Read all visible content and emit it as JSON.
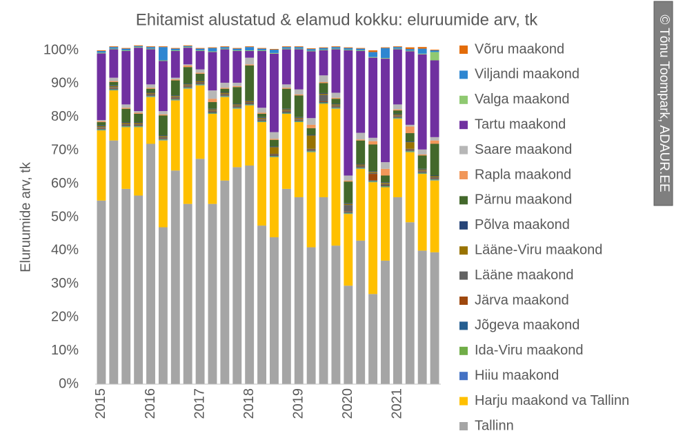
{
  "chart_data": {
    "type": "stacked_bar_percent",
    "title": "Ehitamist alustatud & elamud kokku: eluruumide arv, tk",
    "y_axis_label": "Eluruumide arv, tk",
    "watermark": "© Tõnu Toompark, ADAUR.EE",
    "categories": [
      "2015",
      null,
      null,
      null,
      "2016",
      null,
      null,
      null,
      "2017",
      null,
      null,
      null,
      "2018",
      null,
      null,
      null,
      "2019",
      null,
      null,
      null,
      "2020",
      null,
      null,
      null,
      "2021",
      null,
      null,
      null
    ],
    "ylim": [
      0,
      100
    ],
    "yticks": [
      {
        "value": 0,
        "label": "0%"
      },
      {
        "value": 10,
        "label": "10%"
      },
      {
        "value": 20,
        "label": "20%"
      },
      {
        "value": 30,
        "label": "30%"
      },
      {
        "value": 40,
        "label": "40%"
      },
      {
        "value": 50,
        "label": "50%"
      },
      {
        "value": 60,
        "label": "60%"
      },
      {
        "value": 70,
        "label": "70%"
      },
      {
        "value": 80,
        "label": "80%"
      },
      {
        "value": 90,
        "label": "90%"
      },
      {
        "value": 100,
        "label": "100%"
      }
    ],
    "grid": false,
    "legend": "right",
    "series": [
      {
        "name": "Tallinn",
        "color": "#a5a5a5",
        "values": [
          55,
          73,
          58.5,
          56.5,
          72,
          47,
          64,
          54,
          67.5,
          54,
          61,
          65,
          65.5,
          47.5,
          44,
          58.5,
          56,
          41,
          56,
          41.5,
          29.5,
          43,
          27,
          37,
          56,
          48.5,
          40,
          39.5
        ]
      },
      {
        "name": "Harju maakond va Tallinn",
        "color": "#ffc000",
        "values": [
          21,
          15,
          18.5,
          20.5,
          14,
          26,
          21,
          34.5,
          22,
          27,
          25,
          17.5,
          18,
          31,
          24,
          22.5,
          22.5,
          28.5,
          28,
          41,
          21.5,
          21.5,
          33.5,
          22,
          23.5,
          21,
          23,
          21.5
        ]
      },
      {
        "name": "Hiiu maakond",
        "color": "#4472c4",
        "values": [
          0.1,
          0.1,
          0.1,
          0.1,
          0.1,
          0.1,
          0.1,
          0.1,
          0.1,
          0.1,
          0.1,
          0.1,
          0.1,
          0.1,
          0.1,
          0.1,
          0.1,
          0.1,
          0.1,
          0.1,
          0.1,
          0.1,
          0.1,
          0.1,
          0.1,
          0.1,
          0.1,
          0.1
        ]
      },
      {
        "name": "Ida-Viru maakond",
        "color": "#70ad47",
        "values": [
          0.2,
          0.2,
          0.2,
          0.2,
          0.2,
          0.2,
          0.2,
          0.2,
          0.2,
          0.2,
          0.2,
          0.2,
          0.2,
          0.2,
          0.2,
          0.2,
          0.2,
          0.2,
          0.2,
          0.2,
          0.2,
          0.2,
          0.2,
          0.2,
          0.2,
          0.2,
          0.2,
          0.2
        ]
      },
      {
        "name": "Jõgeva maakond",
        "color": "#255e91",
        "values": [
          0.2,
          0.2,
          0.2,
          0.2,
          0.2,
          0.2,
          0.2,
          0.2,
          0.2,
          0.2,
          0.2,
          0.2,
          0.2,
          0.2,
          0.2,
          0.2,
          0.2,
          0.2,
          0.2,
          0.2,
          0.2,
          0.2,
          0.2,
          0.2,
          0.2,
          0.2,
          0.2,
          0.2
        ]
      },
      {
        "name": "Järva maakond",
        "color": "#9e480e",
        "values": [
          0.2,
          0.2,
          0.2,
          0.2,
          0.2,
          0.2,
          0.2,
          0.2,
          0.2,
          0.2,
          0.2,
          0.2,
          0.2,
          0.2,
          0.2,
          0.2,
          0.2,
          0.2,
          0.2,
          0.2,
          0.2,
          0.2,
          2,
          0.2,
          0.2,
          0.2,
          0.2,
          0.2
        ]
      },
      {
        "name": "Lääne maakond",
        "color": "#636363",
        "values": [
          0.3,
          0.3,
          0.3,
          0.3,
          0.3,
          0.3,
          0.3,
          0.3,
          0.3,
          0.3,
          0.3,
          0.3,
          0.3,
          0.3,
          0.3,
          0.3,
          0.3,
          0.3,
          2,
          0.3,
          2,
          0.3,
          0.3,
          0.3,
          0.3,
          0.3,
          0.3,
          0.3
        ]
      },
      {
        "name": "Lääne-Viru maakond",
        "color": "#997300",
        "values": [
          0.3,
          0.3,
          0.3,
          0.3,
          0.3,
          0.3,
          0.3,
          0.3,
          0.3,
          0.3,
          0.3,
          0.3,
          0.3,
          0.3,
          2,
          0.3,
          0.3,
          4,
          0.3,
          0.3,
          0.3,
          0.3,
          0.3,
          0.3,
          0.3,
          2,
          0.3,
          0.3
        ]
      },
      {
        "name": "Põlva maakond",
        "color": "#264478",
        "values": [
          0.2,
          0.2,
          0.2,
          0.2,
          0.2,
          0.2,
          0.2,
          0.2,
          0.2,
          0.2,
          0.2,
          0.2,
          0.2,
          0.2,
          0.2,
          0.2,
          0.2,
          0.2,
          0.2,
          0.2,
          0.2,
          0.2,
          0.2,
          0.2,
          0.2,
          0.2,
          0.2,
          0.2
        ]
      },
      {
        "name": "Pärnu maakond",
        "color": "#43682b",
        "values": [
          1,
          1,
          4,
          2.5,
          1,
          6,
          4.5,
          5,
          2,
          2,
          1,
          5,
          10.5,
          1,
          2,
          6,
          6.5,
          2,
          3,
          1.5,
          6.5,
          7,
          8,
          2,
          1,
          2.5,
          4,
          9.5
        ]
      },
      {
        "name": "Rapla maakond",
        "color": "#f1975a",
        "values": [
          0.3,
          0.3,
          0.3,
          0.3,
          0.3,
          0.3,
          0.3,
          0.5,
          0.3,
          1,
          0.3,
          0.3,
          0.3,
          0.3,
          0.3,
          0.3,
          0.3,
          1,
          0.3,
          0.3,
          0.3,
          0.3,
          1,
          2,
          0.3,
          2,
          0.3,
          1
        ]
      },
      {
        "name": "Saare maakond",
        "color": "#b7b7b7",
        "values": [
          0.3,
          1,
          1,
          0.5,
          1,
          1,
          0.5,
          0.3,
          1,
          2.5,
          1.5,
          1,
          2,
          1.5,
          2,
          1,
          1.5,
          2,
          2,
          1.5,
          1.5,
          2,
          1,
          2,
          1.5,
          0.5,
          1.5,
          1
        ]
      },
      {
        "name": "Tartu maakond",
        "color": "#7030a0",
        "values": [
          20,
          8.5,
          16,
          19,
          10.5,
          15,
          8,
          5,
          5.5,
          11.5,
          10,
          9.5,
          2,
          17,
          23.5,
          10.5,
          12,
          20,
          7.5,
          13,
          37.5,
          24.5,
          24,
          31,
          16.5,
          22,
          28.5,
          23
        ]
      },
      {
        "name": "Valga maakond",
        "color": "#8fc971",
        "values": [
          0.2,
          0.2,
          0.2,
          0.2,
          0.2,
          0.2,
          0.2,
          0.2,
          0.2,
          0.2,
          0.2,
          0.2,
          0.2,
          0.2,
          0.2,
          0.2,
          0.2,
          0.2,
          0.2,
          0.2,
          0.2,
          0.2,
          0.2,
          0.2,
          0.2,
          0.2,
          0.2,
          2.5
        ]
      },
      {
        "name": "Viljandi maakond",
        "color": "#2e86d1",
        "values": [
          0.5,
          0.5,
          0.5,
          0.3,
          0.5,
          4,
          0.5,
          0.3,
          0.5,
          1,
          0.5,
          0.5,
          1,
          0.5,
          1,
          0.5,
          0.5,
          0.5,
          0.5,
          0.5,
          0.5,
          0.5,
          1.5,
          3,
          0.5,
          0.5,
          1.5,
          0.5
        ]
      },
      {
        "name": "Võru maakond",
        "color": "#e36c09",
        "values": [
          0.2,
          0.2,
          0.2,
          0.2,
          0.2,
          0.2,
          0.2,
          0.2,
          0.2,
          0.2,
          0.2,
          0.2,
          0.2,
          0.2,
          0.2,
          0.2,
          0.2,
          0.2,
          0.2,
          0.2,
          0.2,
          0.2,
          0.5,
          0.2,
          0.2,
          0.5,
          0.5,
          0.2
        ]
      }
    ]
  }
}
